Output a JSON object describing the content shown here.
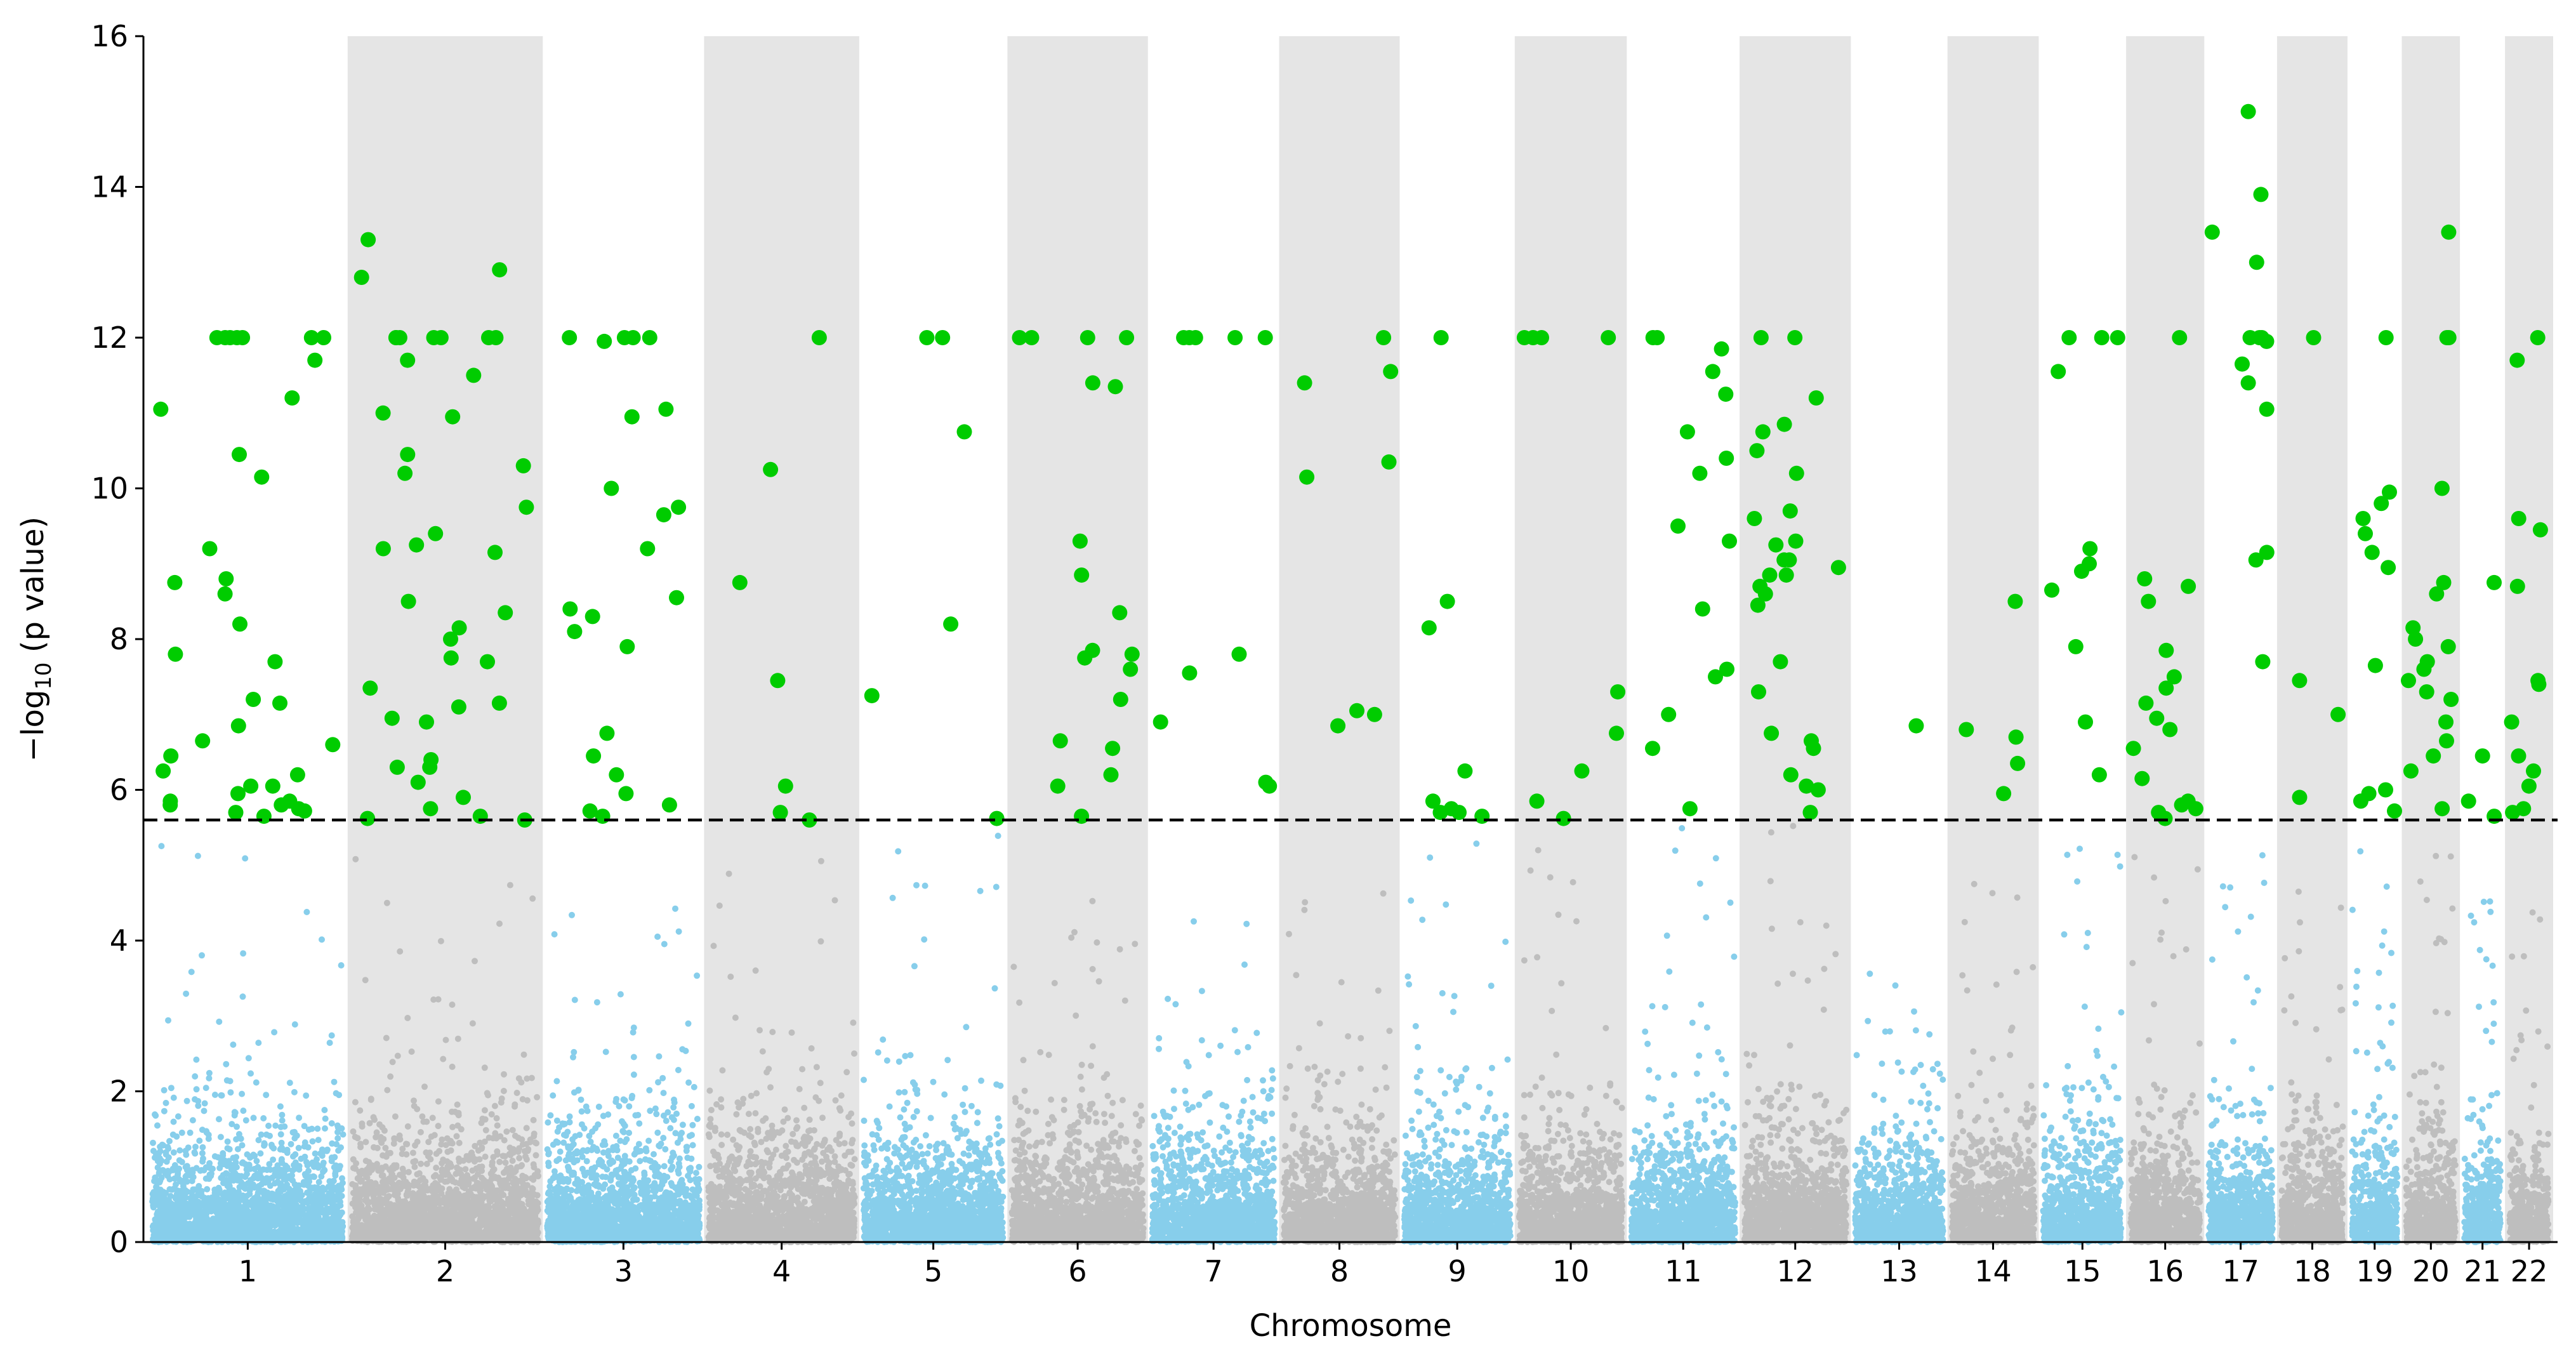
{
  "chart_data": {
    "type": "scatter",
    "subtype": "manhattan",
    "title": "",
    "xlabel": "Chromosome",
    "ylabel": {
      "prefix": "−log",
      "subscript": "10",
      "suffix": " (p value)"
    },
    "ylim": [
      0,
      16
    ],
    "yticks": [
      "0",
      "2",
      "4",
      "6",
      "8",
      "10",
      "12",
      "14",
      "16"
    ],
    "threshold": 5.6,
    "grid": false,
    "colors": {
      "odd_chromosome": "#87ceeb",
      "even_chromosome": "#bebebe",
      "significant": "#00cc00",
      "even_band": "#e5e5e5",
      "threshold_line": "#000000"
    },
    "chromosomes": [
      {
        "label": "1",
        "size": 248,
        "max_bg": 5.6,
        "significant": [
          12,
          12,
          12,
          12,
          12,
          12,
          11.2,
          11.7,
          11.05,
          10.45,
          8.2,
          7.8,
          7.7,
          7.2,
          7.15,
          6.85,
          6.65,
          6.6,
          6.25,
          5.85,
          5.8,
          5.8,
          5.75,
          5.72,
          12,
          8.8,
          10.15,
          9.2,
          8.6,
          6.45,
          6.2,
          6.05,
          5.95,
          5.85,
          5.7,
          5.65,
          8.75,
          6.05
        ]
      },
      {
        "label": "2",
        "size": 242,
        "max_bg": 5.3,
        "significant": [
          12,
          12,
          12,
          11.7,
          11.5,
          10.45,
          10.2,
          9.75,
          9.25,
          9.2,
          8.5,
          8.35,
          7.35,
          7.15,
          6.95,
          5.62,
          10.95,
          10.3,
          9.15,
          6.3,
          5.75,
          12,
          12,
          12,
          9.4,
          8.15,
          7.75,
          6.9,
          13.3,
          12.9,
          12.8,
          12,
          11,
          8.0,
          7.7,
          7.1,
          6.4,
          6.3,
          6.1,
          5.9,
          5.65,
          5.6
        ]
      },
      {
        "label": "3",
        "size": 198,
        "max_bg": 4.8,
        "significant": [
          10.0,
          9.75,
          8.55,
          5.65,
          6.75,
          12,
          11.95,
          12,
          12,
          12,
          11.05,
          10.95,
          9.65,
          9.2,
          8.4,
          8.3,
          8.1,
          7.9,
          6.45,
          6.2,
          5.95,
          5.8,
          5.72
        ]
      },
      {
        "label": "4",
        "size": 190,
        "max_bg": 5.1,
        "significant": [
          12,
          8.75,
          5.6,
          10.25,
          5.7,
          7.45,
          6.05
        ]
      },
      {
        "label": "5",
        "size": 181,
        "max_bg": 5.6,
        "significant": [
          8.2,
          12,
          12,
          10.75,
          7.25,
          5.62
        ]
      },
      {
        "label": "6",
        "size": 171,
        "max_bg": 5.5,
        "significant": [
          12,
          12,
          12,
          11.4,
          11.35,
          9.3,
          6.55,
          8.35,
          7.85,
          7.8,
          7.75,
          7.6,
          7.2,
          6.65,
          6.2,
          6.05,
          12,
          8.85,
          5.65
        ]
      },
      {
        "label": "7",
        "size": 159,
        "max_bg": 4.4,
        "significant": [
          12,
          12,
          12,
          6.9,
          6.1,
          12,
          12,
          7.8,
          7.55,
          6.05
        ]
      },
      {
        "label": "8",
        "size": 145,
        "max_bg": 4.7,
        "significant": [
          7.05,
          7.0,
          6.85,
          12,
          11.55,
          11.4,
          10.35,
          10.15
        ]
      },
      {
        "label": "9",
        "size": 138,
        "max_bg": 5.5,
        "significant": [
          5.85,
          5.7,
          5.65,
          12,
          8.5,
          8.15,
          6.25,
          5.75,
          5.7
        ]
      },
      {
        "label": "10",
        "size": 134,
        "max_bg": 5.4,
        "significant": [
          5.85,
          5.62,
          12,
          12,
          12,
          7.3,
          6.75,
          12,
          6.25
        ]
      },
      {
        "label": "11",
        "size": 135,
        "max_bg": 5.5,
        "significant": [
          10.2,
          9.3,
          7.5,
          6.55,
          5.75,
          12,
          11.85,
          11.25,
          10.4,
          8.4,
          7.6,
          7.0,
          12,
          11.55,
          10.75,
          9.5
        ]
      },
      {
        "label": "12",
        "size": 133,
        "max_bg": 5.6,
        "significant": [
          9.25,
          9.6,
          12,
          11.2,
          12,
          10.85,
          10.75,
          10.5,
          10.2,
          9.7,
          9.3,
          9.05,
          8.95,
          8.85,
          8.7,
          8.6,
          8.45,
          7.7,
          7.3,
          6.75,
          6.65,
          6.55,
          6.0,
          5.7,
          9.05,
          8.85,
          6.2,
          6.05
        ]
      },
      {
        "label": "13",
        "size": 114,
        "max_bg": 3.6,
        "significant": [
          6.85
        ]
      },
      {
        "label": "14",
        "size": 107,
        "max_bg": 5.0,
        "significant": [
          8.5,
          6.8,
          6.7,
          6.35,
          5.95
        ]
      },
      {
        "label": "15",
        "size": 102,
        "max_bg": 5.4,
        "significant": [
          7.9,
          12,
          12,
          12,
          8.9,
          8.65,
          6.9,
          11.55,
          9.2,
          9.0,
          6.2
        ]
      },
      {
        "label": "16",
        "size": 90,
        "max_bg": 5.5,
        "significant": [
          5.75,
          5.7,
          5.62,
          12,
          8.8,
          8.7,
          7.35,
          6.15,
          5.8,
          8.5,
          7.85,
          7.5,
          7.15,
          6.95,
          6.8,
          6.55,
          5.85
        ]
      },
      {
        "label": "17",
        "size": 83,
        "max_bg": 5.2,
        "significant": [
          11.95,
          15.0,
          13.9,
          13.4,
          13.0,
          12,
          12,
          12,
          11.65,
          11.4,
          11.05,
          9.15,
          7.7,
          9.05
        ]
      },
      {
        "label": "18",
        "size": 80,
        "max_bg": 4.9,
        "significant": [
          7.0,
          12,
          7.45,
          5.9
        ]
      },
      {
        "label": "19",
        "size": 59,
        "max_bg": 5.3,
        "significant": [
          9.95,
          9.8,
          9.6,
          9.4,
          9.15,
          8.95,
          7.65,
          5.95,
          12,
          6.0,
          5.85,
          5.72
        ]
      },
      {
        "label": "20",
        "size": 64,
        "max_bg": 5.5,
        "significant": [
          13.4,
          12,
          12,
          10.0,
          8.75,
          8.6,
          8.15,
          8.0,
          7.9,
          7.7,
          7.6,
          7.45,
          7.3,
          7.2,
          6.9,
          6.65,
          6.45,
          6.25,
          5.75
        ]
      },
      {
        "label": "21",
        "size": 47,
        "max_bg": 4.9,
        "significant": [
          5.85,
          5.65,
          8.75,
          6.45
        ]
      },
      {
        "label": "22",
        "size": 51,
        "max_bg": 4.6,
        "significant": [
          12,
          11.7,
          9.6,
          9.45,
          8.7,
          7.45,
          7.4,
          6.9,
          6.45,
          6.25,
          6.05,
          5.75,
          5.7
        ]
      }
    ]
  }
}
